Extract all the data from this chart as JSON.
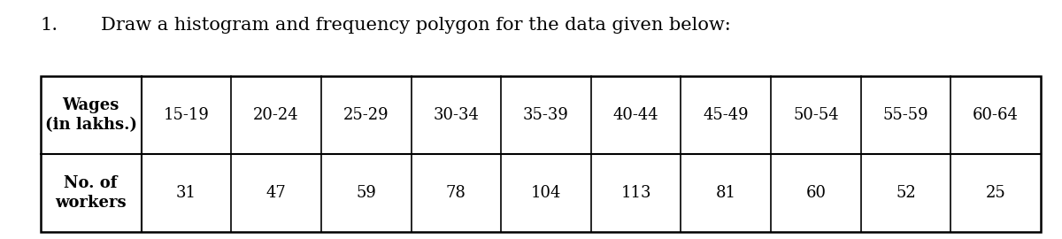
{
  "title_number": "1.",
  "title_text": "Draw a histogram and frequency polygon for the data given below:",
  "wages_label": "Wages\n(in lakhs.)",
  "workers_label": "No. of\nworkers",
  "wage_ranges": [
    "15-19",
    "20-24",
    "25-29",
    "30-34",
    "35-39",
    "40-44",
    "45-49",
    "50-54",
    "55-59",
    "60-64"
  ],
  "values": [
    31,
    47,
    59,
    78,
    104,
    113,
    81,
    60,
    52,
    25
  ],
  "background_color": "#ffffff",
  "text_color": "#000000",
  "font_size_title": 15,
  "font_size_table": 13,
  "table_line_color": "#000000",
  "font_family": "DejaVu Serif"
}
